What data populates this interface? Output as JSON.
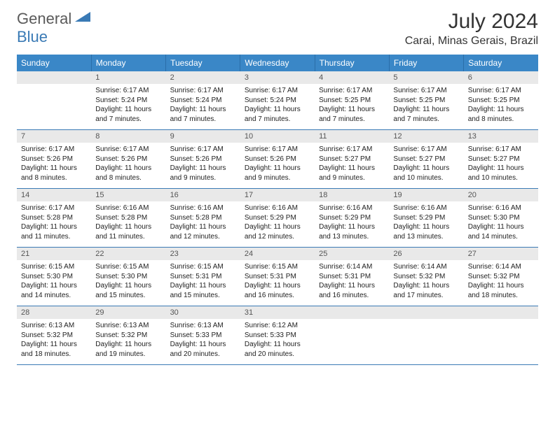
{
  "logo": {
    "part1": "General",
    "part2": "Blue"
  },
  "title": "July 2024",
  "location": "Carai, Minas Gerais, Brazil",
  "colors": {
    "header_bg": "#3a87c7",
    "header_text": "#ffffff",
    "daynum_bg": "#e9e9e9",
    "border": "#3a7ab5",
    "logo_gray": "#5a5a5a",
    "logo_blue": "#3a7ab5"
  },
  "day_headers": [
    "Sunday",
    "Monday",
    "Tuesday",
    "Wednesday",
    "Thursday",
    "Friday",
    "Saturday"
  ],
  "weeks": [
    [
      {
        "n": "",
        "sr": "",
        "ss": "",
        "dl": ""
      },
      {
        "n": "1",
        "sr": "Sunrise: 6:17 AM",
        "ss": "Sunset: 5:24 PM",
        "dl": "Daylight: 11 hours and 7 minutes."
      },
      {
        "n": "2",
        "sr": "Sunrise: 6:17 AM",
        "ss": "Sunset: 5:24 PM",
        "dl": "Daylight: 11 hours and 7 minutes."
      },
      {
        "n": "3",
        "sr": "Sunrise: 6:17 AM",
        "ss": "Sunset: 5:24 PM",
        "dl": "Daylight: 11 hours and 7 minutes."
      },
      {
        "n": "4",
        "sr": "Sunrise: 6:17 AM",
        "ss": "Sunset: 5:25 PM",
        "dl": "Daylight: 11 hours and 7 minutes."
      },
      {
        "n": "5",
        "sr": "Sunrise: 6:17 AM",
        "ss": "Sunset: 5:25 PM",
        "dl": "Daylight: 11 hours and 7 minutes."
      },
      {
        "n": "6",
        "sr": "Sunrise: 6:17 AM",
        "ss": "Sunset: 5:25 PM",
        "dl": "Daylight: 11 hours and 8 minutes."
      }
    ],
    [
      {
        "n": "7",
        "sr": "Sunrise: 6:17 AM",
        "ss": "Sunset: 5:26 PM",
        "dl": "Daylight: 11 hours and 8 minutes."
      },
      {
        "n": "8",
        "sr": "Sunrise: 6:17 AM",
        "ss": "Sunset: 5:26 PM",
        "dl": "Daylight: 11 hours and 8 minutes."
      },
      {
        "n": "9",
        "sr": "Sunrise: 6:17 AM",
        "ss": "Sunset: 5:26 PM",
        "dl": "Daylight: 11 hours and 9 minutes."
      },
      {
        "n": "10",
        "sr": "Sunrise: 6:17 AM",
        "ss": "Sunset: 5:26 PM",
        "dl": "Daylight: 11 hours and 9 minutes."
      },
      {
        "n": "11",
        "sr": "Sunrise: 6:17 AM",
        "ss": "Sunset: 5:27 PM",
        "dl": "Daylight: 11 hours and 9 minutes."
      },
      {
        "n": "12",
        "sr": "Sunrise: 6:17 AM",
        "ss": "Sunset: 5:27 PM",
        "dl": "Daylight: 11 hours and 10 minutes."
      },
      {
        "n": "13",
        "sr": "Sunrise: 6:17 AM",
        "ss": "Sunset: 5:27 PM",
        "dl": "Daylight: 11 hours and 10 minutes."
      }
    ],
    [
      {
        "n": "14",
        "sr": "Sunrise: 6:17 AM",
        "ss": "Sunset: 5:28 PM",
        "dl": "Daylight: 11 hours and 11 minutes."
      },
      {
        "n": "15",
        "sr": "Sunrise: 6:16 AM",
        "ss": "Sunset: 5:28 PM",
        "dl": "Daylight: 11 hours and 11 minutes."
      },
      {
        "n": "16",
        "sr": "Sunrise: 6:16 AM",
        "ss": "Sunset: 5:28 PM",
        "dl": "Daylight: 11 hours and 12 minutes."
      },
      {
        "n": "17",
        "sr": "Sunrise: 6:16 AM",
        "ss": "Sunset: 5:29 PM",
        "dl": "Daylight: 11 hours and 12 minutes."
      },
      {
        "n": "18",
        "sr": "Sunrise: 6:16 AM",
        "ss": "Sunset: 5:29 PM",
        "dl": "Daylight: 11 hours and 13 minutes."
      },
      {
        "n": "19",
        "sr": "Sunrise: 6:16 AM",
        "ss": "Sunset: 5:29 PM",
        "dl": "Daylight: 11 hours and 13 minutes."
      },
      {
        "n": "20",
        "sr": "Sunrise: 6:16 AM",
        "ss": "Sunset: 5:30 PM",
        "dl": "Daylight: 11 hours and 14 minutes."
      }
    ],
    [
      {
        "n": "21",
        "sr": "Sunrise: 6:15 AM",
        "ss": "Sunset: 5:30 PM",
        "dl": "Daylight: 11 hours and 14 minutes."
      },
      {
        "n": "22",
        "sr": "Sunrise: 6:15 AM",
        "ss": "Sunset: 5:30 PM",
        "dl": "Daylight: 11 hours and 15 minutes."
      },
      {
        "n": "23",
        "sr": "Sunrise: 6:15 AM",
        "ss": "Sunset: 5:31 PM",
        "dl": "Daylight: 11 hours and 15 minutes."
      },
      {
        "n": "24",
        "sr": "Sunrise: 6:15 AM",
        "ss": "Sunset: 5:31 PM",
        "dl": "Daylight: 11 hours and 16 minutes."
      },
      {
        "n": "25",
        "sr": "Sunrise: 6:14 AM",
        "ss": "Sunset: 5:31 PM",
        "dl": "Daylight: 11 hours and 16 minutes."
      },
      {
        "n": "26",
        "sr": "Sunrise: 6:14 AM",
        "ss": "Sunset: 5:32 PM",
        "dl": "Daylight: 11 hours and 17 minutes."
      },
      {
        "n": "27",
        "sr": "Sunrise: 6:14 AM",
        "ss": "Sunset: 5:32 PM",
        "dl": "Daylight: 11 hours and 18 minutes."
      }
    ],
    [
      {
        "n": "28",
        "sr": "Sunrise: 6:13 AM",
        "ss": "Sunset: 5:32 PM",
        "dl": "Daylight: 11 hours and 18 minutes."
      },
      {
        "n": "29",
        "sr": "Sunrise: 6:13 AM",
        "ss": "Sunset: 5:32 PM",
        "dl": "Daylight: 11 hours and 19 minutes."
      },
      {
        "n": "30",
        "sr": "Sunrise: 6:13 AM",
        "ss": "Sunset: 5:33 PM",
        "dl": "Daylight: 11 hours and 20 minutes."
      },
      {
        "n": "31",
        "sr": "Sunrise: 6:12 AM",
        "ss": "Sunset: 5:33 PM",
        "dl": "Daylight: 11 hours and 20 minutes."
      },
      {
        "n": "",
        "sr": "",
        "ss": "",
        "dl": ""
      },
      {
        "n": "",
        "sr": "",
        "ss": "",
        "dl": ""
      },
      {
        "n": "",
        "sr": "",
        "ss": "",
        "dl": ""
      }
    ]
  ]
}
